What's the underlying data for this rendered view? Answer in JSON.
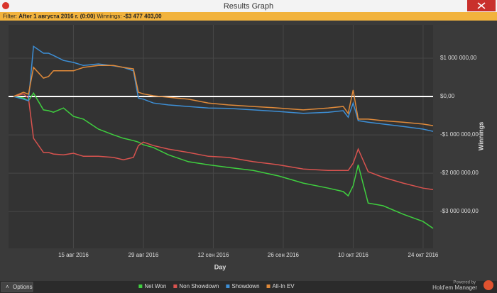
{
  "window": {
    "title": "Results Graph"
  },
  "filter": {
    "label": "Filter:",
    "text": "After 1 августа 2016 г. (0:00)",
    "winnings_label": "Winnings:",
    "winnings": "-$3 477 403,00"
  },
  "footer": {
    "options": "Options",
    "powered_by": "Powered by",
    "brand": "Hold'em Manager"
  },
  "chart_data": {
    "type": "line",
    "x_label": "Day",
    "y_label": "Winnings",
    "legend": "bottom",
    "grid": true,
    "x": [
      "2016-08-03",
      "2016-08-05",
      "2016-08-06",
      "2016-08-07",
      "2016-08-09",
      "2016-08-10",
      "2016-08-11",
      "2016-08-13",
      "2016-08-15",
      "2016-08-17",
      "2016-08-20",
      "2016-08-23",
      "2016-08-25",
      "2016-08-27",
      "2016-08-28",
      "2016-08-29",
      "2016-08-31",
      "2016-09-03",
      "2016-09-07",
      "2016-09-11",
      "2016-09-15",
      "2016-09-20",
      "2016-09-25",
      "2016-09-30",
      "2016-10-05",
      "2016-10-08",
      "2016-10-09",
      "2016-10-10",
      "2016-10-11",
      "2016-10-13",
      "2016-10-16",
      "2016-10-20",
      "2016-10-24",
      "2016-10-26"
    ],
    "xlim": [
      "2016-08-02",
      "2016-10-26"
    ],
    "xticks": [
      {
        "value": "2016-08-15",
        "label": "15 авг 2016"
      },
      {
        "value": "2016-08-29",
        "label": "29 авг 2016"
      },
      {
        "value": "2016-09-12",
        "label": "12 сен 2016"
      },
      {
        "value": "2016-09-26",
        "label": "26 сен 2016"
      },
      {
        "value": "2016-10-10",
        "label": "10 окт 2016"
      },
      {
        "value": "2016-10-24",
        "label": "24 окт 2016"
      }
    ],
    "ylim": [
      -3960000,
      1870000
    ],
    "yticks": [
      {
        "value": 1000000,
        "label": "$1 000 000,00"
      },
      {
        "value": 0,
        "label": "$0,00"
      },
      {
        "value": -1000000,
        "label": "-$1 000 000,00"
      },
      {
        "value": -2000000,
        "label": "-$2 000 000,00"
      },
      {
        "value": -3000000,
        "label": "-$3 000 000,00"
      }
    ],
    "series": [
      {
        "name": "Net Won",
        "color": "#3fcf3f",
        "values": [
          0,
          -40000,
          -110000,
          90000,
          -350000,
          -370000,
          -410000,
          -300000,
          -520000,
          -590000,
          -850000,
          -1000000,
          -1090000,
          -1150000,
          -1190000,
          -1260000,
          -1330000,
          -1520000,
          -1700000,
          -1780000,
          -1850000,
          -1930000,
          -2070000,
          -2260000,
          -2390000,
          -2480000,
          -2590000,
          -2330000,
          -1780000,
          -2780000,
          -2850000,
          -3070000,
          -3260000,
          -3440000
        ]
      },
      {
        "name": "Non Showdown",
        "color": "#d9534f",
        "values": [
          0,
          70000,
          -40000,
          -1090000,
          -1460000,
          -1460000,
          -1500000,
          -1520000,
          -1480000,
          -1560000,
          -1560000,
          -1590000,
          -1650000,
          -1590000,
          -1280000,
          -1190000,
          -1280000,
          -1370000,
          -1460000,
          -1560000,
          -1590000,
          -1700000,
          -1780000,
          -1890000,
          -1930000,
          -1930000,
          -1930000,
          -1740000,
          -1370000,
          -1960000,
          -2110000,
          -2260000,
          -2390000,
          -2430000
        ]
      },
      {
        "name": "Showdown",
        "color": "#3d8fd6",
        "values": [
          0,
          -70000,
          -110000,
          1310000,
          1130000,
          1130000,
          1070000,
          940000,
          890000,
          810000,
          850000,
          800000,
          760000,
          670000,
          -40000,
          -70000,
          -170000,
          -220000,
          -260000,
          -300000,
          -310000,
          -350000,
          -390000,
          -440000,
          -410000,
          -370000,
          -540000,
          -170000,
          -630000,
          -670000,
          -720000,
          -780000,
          -850000,
          -910000
        ]
      },
      {
        "name": "All-In EV",
        "color": "#e08a3a",
        "values": [
          0,
          110000,
          60000,
          760000,
          480000,
          520000,
          670000,
          670000,
          670000,
          760000,
          810000,
          810000,
          760000,
          720000,
          110000,
          70000,
          20000,
          -20000,
          -70000,
          -170000,
          -220000,
          -260000,
          -300000,
          -350000,
          -300000,
          -260000,
          -440000,
          170000,
          -590000,
          -590000,
          -630000,
          -670000,
          -720000,
          -760000
        ]
      }
    ]
  }
}
